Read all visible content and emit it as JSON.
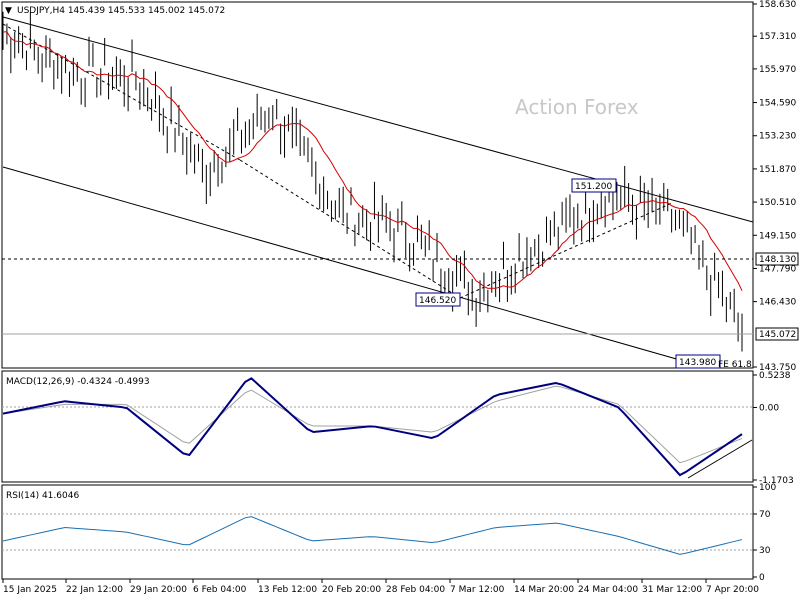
{
  "header": {
    "symbol_line": "USDJPY,H4  145.439 145.533 145.002 145.072",
    "watermark": "Action Forex"
  },
  "price_panel": {
    "y_ticks": [
      "158.630",
      "157.310",
      "155.970",
      "154.590",
      "153.230",
      "151.870",
      "150.510",
      "149.150",
      "147.790",
      "146.430",
      "145.072",
      "143.750"
    ],
    "current_price": "145.072",
    "hline_level": "148.130",
    "labels": {
      "high_label": "151.200",
      "low_label_1": "146.520",
      "low_label_2": "143.980",
      "fib_label": "FE 61.8"
    }
  },
  "macd_panel": {
    "title": "MACD(12,26,9) -0.4324 -0.4993",
    "y_ticks": [
      "0.5238",
      "0.00",
      "-1.1703"
    ]
  },
  "rsi_panel": {
    "title": "RSI(14) 41.6046",
    "y_ticks": [
      "100",
      "70",
      "30",
      "0"
    ]
  },
  "x_axis": {
    "labels": [
      "15 Jan 2025",
      "22 Jan 12:00",
      "29 Jan 20:00",
      "6 Feb 04:00",
      "13 Feb 12:00",
      "20 Feb 20:00",
      "28 Feb 04:00",
      "7 Mar 12:00",
      "14 Mar 20:00",
      "24 Mar 04:00",
      "31 Mar 12:00",
      "7 Apr 20:00"
    ]
  },
  "colors": {
    "price_bars": "#000000",
    "sma_line": "#d40000",
    "macd_line": "#000080",
    "signal_line": "#a0a0a0",
    "rsi_line": "#1a6fb0",
    "label_text": "#000080"
  },
  "chart_data": [
    {
      "type": "line",
      "title": "USDJPY,H4",
      "series": [
        {
          "name": "USDJPY",
          "x": [
            "15 Jan 2025",
            "22 Jan 12:00",
            "29 Jan 20:00",
            "6 Feb 04:00",
            "13 Feb 12:00",
            "20 Feb 20:00",
            "28 Feb 04:00",
            "7 Mar 12:00",
            "14 Mar 20:00",
            "24 Mar 04:00",
            "31 Mar 12:00",
            "7 Apr 20:00"
          ],
          "values": [
            157.5,
            155.8,
            155.6,
            151.8,
            154.3,
            150.2,
            149.3,
            146.8,
            148.9,
            150.8,
            149.8,
            145.3
          ]
        }
      ],
      "ylim": [
        143.75,
        158.63
      ],
      "annotations": [
        "151.200",
        "146.520",
        "143.980",
        "148.130",
        "FE 61.8"
      ]
    },
    {
      "type": "line",
      "title": "MACD(12,26,9) -0.4324 -0.4993",
      "series": [
        {
          "name": "MACD",
          "values": [
            -0.1,
            0.1,
            0.0,
            -0.8,
            0.5,
            -0.4,
            -0.3,
            -0.5,
            0.2,
            0.4,
            0.0,
            -1.1,
            -0.43
          ]
        },
        {
          "name": "Signal",
          "values": [
            -0.1,
            0.05,
            0.05,
            -0.6,
            0.3,
            -0.3,
            -0.3,
            -0.4,
            0.1,
            0.35,
            0.05,
            -0.9,
            -0.5
          ]
        }
      ],
      "ylim": [
        -1.1703,
        0.5238
      ]
    },
    {
      "type": "line",
      "title": "RSI(14) 41.6046",
      "series": [
        {
          "name": "RSI",
          "values": [
            40,
            55,
            50,
            35,
            68,
            40,
            45,
            38,
            55,
            60,
            45,
            25,
            41.6
          ]
        }
      ],
      "ylim": [
        0,
        100
      ]
    }
  ]
}
